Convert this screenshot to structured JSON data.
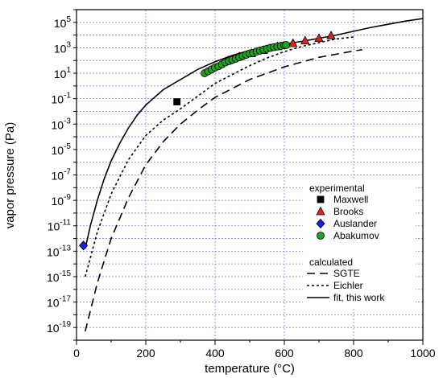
{
  "chart_data": {
    "type": "scatter",
    "xlabel": "temperature (°C)",
    "ylabel": "vapor pressure (Pa)",
    "xlim": [
      0,
      1000
    ],
    "ylim_log10": [
      -20,
      6
    ],
    "y_scale": "log",
    "grid": true,
    "legend_position": "right-middle",
    "x_ticks": [
      {
        "value": 0,
        "label": "0"
      },
      {
        "value": 200,
        "label": "200"
      },
      {
        "value": 400,
        "label": "400"
      },
      {
        "value": 600,
        "label": "600"
      },
      {
        "value": 800,
        "label": "800"
      },
      {
        "value": 1000,
        "label": "1000"
      }
    ],
    "y_ticks": [
      {
        "exp": 5,
        "base": "10",
        "sup": "5"
      },
      {
        "exp": 3,
        "base": "10",
        "sup": "3"
      },
      {
        "exp": 1,
        "base": "10",
        "sup": "1"
      },
      {
        "exp": -1,
        "base": "10",
        "sup": "-1"
      },
      {
        "exp": -3,
        "base": "10",
        "sup": "-3"
      },
      {
        "exp": -5,
        "base": "10",
        "sup": "-5"
      },
      {
        "exp": -7,
        "base": "10",
        "sup": "-7"
      },
      {
        "exp": -9,
        "base": "10",
        "sup": "-9"
      },
      {
        "exp": -11,
        "base": "10",
        "sup": "-11"
      },
      {
        "exp": -13,
        "base": "10",
        "sup": "-13"
      },
      {
        "exp": -15,
        "base": "10",
        "sup": "-15"
      },
      {
        "exp": -17,
        "base": "10",
        "sup": "-17"
      },
      {
        "exp": -19,
        "base": "10",
        "sup": "-19"
      }
    ],
    "legend_groups": {
      "experimental": "experimental",
      "calculated": "calculated"
    },
    "series": [
      {
        "name": "Maxwell",
        "kind": "points",
        "marker": "square",
        "color": "#000000",
        "points": [
          {
            "x": 290,
            "log10y": -1.25
          }
        ]
      },
      {
        "name": "Brooks",
        "kind": "points",
        "marker": "triangle",
        "color": "#e0201a",
        "points": [
          {
            "x": 438,
            "log10y": 2.0
          },
          {
            "x": 470,
            "log10y": 2.3
          },
          {
            "x": 505,
            "log10y": 2.55
          },
          {
            "x": 540,
            "log10y": 2.8
          },
          {
            "x": 580,
            "log10y": 3.1
          },
          {
            "x": 625,
            "log10y": 3.35
          },
          {
            "x": 660,
            "log10y": 3.55
          },
          {
            "x": 700,
            "log10y": 3.75
          },
          {
            "x": 735,
            "log10y": 3.95
          }
        ]
      },
      {
        "name": "Auslander",
        "kind": "points",
        "marker": "diamond",
        "color": "#1a22e0",
        "points": [
          {
            "x": 20,
            "log10y": -12.55
          }
        ]
      },
      {
        "name": "Abakumov",
        "kind": "points",
        "marker": "circle",
        "color": "#22a022",
        "points": [
          {
            "x": 370,
            "log10y": 1.0
          },
          {
            "x": 380,
            "log10y": 1.15
          },
          {
            "x": 390,
            "log10y": 1.3
          },
          {
            "x": 400,
            "log10y": 1.45
          },
          {
            "x": 410,
            "log10y": 1.55
          },
          {
            "x": 420,
            "log10y": 1.7
          },
          {
            "x": 430,
            "log10y": 1.85
          },
          {
            "x": 440,
            "log10y": 1.95
          },
          {
            "x": 450,
            "log10y": 2.05
          },
          {
            "x": 460,
            "log10y": 2.15
          },
          {
            "x": 470,
            "log10y": 2.25
          },
          {
            "x": 480,
            "log10y": 2.35
          },
          {
            "x": 490,
            "log10y": 2.45
          },
          {
            "x": 500,
            "log10y": 2.55
          },
          {
            "x": 510,
            "log10y": 2.6
          },
          {
            "x": 520,
            "log10y": 2.7
          },
          {
            "x": 530,
            "log10y": 2.78
          },
          {
            "x": 540,
            "log10y": 2.85
          },
          {
            "x": 550,
            "log10y": 2.92
          },
          {
            "x": 560,
            "log10y": 3.0
          },
          {
            "x": 570,
            "log10y": 3.05
          },
          {
            "x": 580,
            "log10y": 3.1
          },
          {
            "x": 590,
            "log10y": 3.15
          },
          {
            "x": 600,
            "log10y": 3.2
          },
          {
            "x": 605,
            "log10y": 3.22
          }
        ]
      },
      {
        "name": "SGTE",
        "kind": "line",
        "dash": "10,6",
        "color": "#000000",
        "points": [
          {
            "x": 25,
            "log10y": -19.3
          },
          {
            "x": 60,
            "log10y": -15.5
          },
          {
            "x": 100,
            "log10y": -12.0
          },
          {
            "x": 150,
            "log10y": -8.8
          },
          {
            "x": 200,
            "log10y": -6.2
          },
          {
            "x": 250,
            "log10y": -4.4
          },
          {
            "x": 300,
            "log10y": -3.0
          },
          {
            "x": 350,
            "log10y": -1.9
          },
          {
            "x": 400,
            "log10y": -0.9
          },
          {
            "x": 450,
            "log10y": -0.2
          },
          {
            "x": 500,
            "log10y": 0.5
          },
          {
            "x": 550,
            "log10y": 1.0
          },
          {
            "x": 600,
            "log10y": 1.5
          },
          {
            "x": 700,
            "log10y": 2.25
          },
          {
            "x": 800,
            "log10y": 2.75
          },
          {
            "x": 825,
            "log10y": 2.85
          }
        ]
      },
      {
        "name": "Eichler",
        "kind": "line",
        "dash": "3,3",
        "color": "#000000",
        "points": [
          {
            "x": 25,
            "log10y": -15.0
          },
          {
            "x": 60,
            "log10y": -11.5
          },
          {
            "x": 100,
            "log10y": -8.5
          },
          {
            "x": 150,
            "log10y": -5.8
          },
          {
            "x": 200,
            "log10y": -3.9
          },
          {
            "x": 250,
            "log10y": -2.7
          },
          {
            "x": 300,
            "log10y": -1.8
          },
          {
            "x": 350,
            "log10y": -0.8
          },
          {
            "x": 400,
            "log10y": 0.2
          },
          {
            "x": 450,
            "log10y": 0.9
          },
          {
            "x": 500,
            "log10y": 1.6
          },
          {
            "x": 550,
            "log10y": 2.2
          },
          {
            "x": 600,
            "log10y": 2.7
          },
          {
            "x": 650,
            "log10y": 3.1
          },
          {
            "x": 700,
            "log10y": 3.4
          },
          {
            "x": 750,
            "log10y": 3.7
          },
          {
            "x": 800,
            "log10y": 3.85
          }
        ]
      },
      {
        "name": "fit, this work",
        "kind": "line",
        "dash": "",
        "color": "#000000",
        "points": [
          {
            "x": 25,
            "log10y": -12.8
          },
          {
            "x": 40,
            "log10y": -11.0
          },
          {
            "x": 60,
            "log10y": -9.0
          },
          {
            "x": 80,
            "log10y": -7.3
          },
          {
            "x": 100,
            "log10y": -5.9
          },
          {
            "x": 125,
            "log10y": -4.5
          },
          {
            "x": 150,
            "log10y": -3.3
          },
          {
            "x": 175,
            "log10y": -2.3
          },
          {
            "x": 200,
            "log10y": -1.5
          },
          {
            "x": 250,
            "log10y": -0.3
          },
          {
            "x": 300,
            "log10y": 0.5
          },
          {
            "x": 350,
            "log10y": 1.3
          },
          {
            "x": 400,
            "log10y": 1.9
          },
          {
            "x": 450,
            "log10y": 2.4
          },
          {
            "x": 500,
            "log10y": 2.8
          },
          {
            "x": 550,
            "log10y": 3.1
          },
          {
            "x": 600,
            "log10y": 3.3
          },
          {
            "x": 650,
            "log10y": 3.5
          },
          {
            "x": 700,
            "log10y": 3.75
          },
          {
            "x": 750,
            "log10y": 4.0
          },
          {
            "x": 800,
            "log10y": 4.3
          },
          {
            "x": 850,
            "log10y": 4.6
          },
          {
            "x": 900,
            "log10y": 4.85
          },
          {
            "x": 950,
            "log10y": 5.1
          },
          {
            "x": 1000,
            "log10y": 5.3
          }
        ]
      }
    ]
  }
}
